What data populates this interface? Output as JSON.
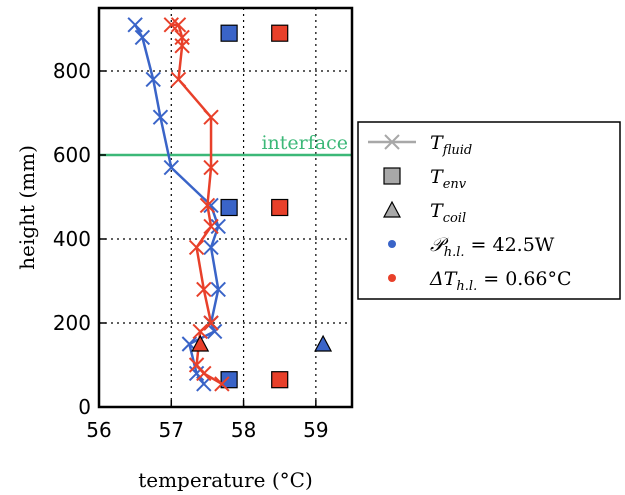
{
  "chart_data": {
    "type": "line",
    "xlabel": "temperature (°C)",
    "ylabel": "height (mm)",
    "xlim": [
      56,
      59.5
    ],
    "ylim": [
      0,
      950
    ],
    "xticks": [
      56,
      57,
      58,
      59
    ],
    "yticks": [
      0,
      200,
      400,
      600,
      800
    ],
    "grid": true,
    "legend_position": "right-outside",
    "interface": {
      "label": "interface",
      "y": 600,
      "color": "#3cb878"
    },
    "series": [
      {
        "name": "P_h.l. = 42.5W",
        "color": "#3a64c8",
        "fluid": {
          "x": [
            57.45,
            57.35,
            57.25,
            57.6,
            57.55,
            57.65,
            57.55,
            57.65,
            57.55,
            57.0,
            56.85,
            56.75,
            56.6,
            56.5
          ],
          "y": [
            55,
            80,
            150,
            180,
            200,
            280,
            380,
            430,
            480,
            570,
            690,
            780,
            880,
            910
          ]
        },
        "env": {
          "x": [
            57.8,
            57.8,
            57.8
          ],
          "y": [
            65,
            475,
            890
          ]
        },
        "coil": {
          "x": [
            59.1
          ],
          "y": [
            150
          ]
        }
      },
      {
        "name": "ΔT_h.l. = 0.66°C",
        "color": "#e8402a",
        "fluid": {
          "x": [
            57.7,
            57.45,
            57.35,
            57.4,
            57.55,
            57.45,
            57.35,
            57.55,
            57.5,
            57.55,
            57.55,
            57.1,
            57.15,
            57.15,
            57.1,
            57.0
          ],
          "y": [
            55,
            80,
            100,
            180,
            200,
            280,
            380,
            430,
            480,
            570,
            690,
            780,
            860,
            880,
            910,
            910
          ]
        },
        "env": {
          "x": [
            58.5,
            58.5,
            58.5
          ],
          "y": [
            65,
            475,
            890
          ]
        },
        "coil": {
          "x": [
            57.4
          ],
          "y": [
            150
          ]
        }
      }
    ],
    "legend": [
      {
        "symbol": "x-line",
        "label": "T_fluid",
        "main": "T",
        "sub": "fluid"
      },
      {
        "symbol": "square",
        "label": "T_env",
        "main": "T",
        "sub": "env"
      },
      {
        "symbol": "triangle",
        "label": "T_coil",
        "main": "T",
        "sub": "coil"
      },
      {
        "symbol": "dot-blue",
        "label": "P_h.l. = 42.5W",
        "main": "𝒫",
        "sub": "h.l.",
        "tail": " = 42.5W"
      },
      {
        "symbol": "dot-red",
        "label": "ΔT_h.l. = 0.66°C",
        "main": "ΔT",
        "sub": "h.l.",
        "tail": " = 0.66°C"
      }
    ]
  }
}
